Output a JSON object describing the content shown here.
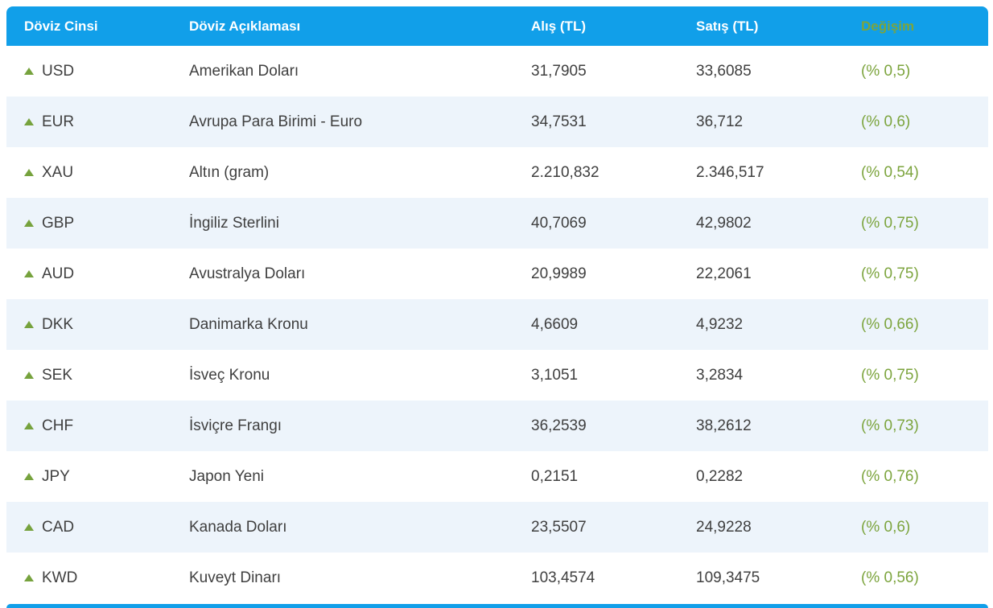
{
  "table": {
    "columns": [
      {
        "label": "Döviz Cinsi"
      },
      {
        "label": "Döviz Açıklaması"
      },
      {
        "label": "Alış (TL)"
      },
      {
        "label": "Satış (TL)"
      },
      {
        "label": "Değişim"
      }
    ],
    "rows": [
      {
        "code": "USD",
        "name": "Amerikan Doları",
        "buy": "31,7905",
        "sell": "33,6085",
        "change": "(% 0,5)",
        "direction": "up"
      },
      {
        "code": "EUR",
        "name": "Avrupa Para Birimi - Euro",
        "buy": "34,7531",
        "sell": "36,712",
        "change": "(% 0,6)",
        "direction": "up"
      },
      {
        "code": "XAU",
        "name": "Altın (gram)",
        "buy": "2.210,832",
        "sell": "2.346,517",
        "change": "(% 0,54)",
        "direction": "up"
      },
      {
        "code": "GBP",
        "name": "İngiliz Sterlini",
        "buy": "40,7069",
        "sell": "42,9802",
        "change": "(% 0,75)",
        "direction": "up"
      },
      {
        "code": "AUD",
        "name": "Avustralya Doları",
        "buy": "20,9989",
        "sell": "22,2061",
        "change": "(% 0,75)",
        "direction": "up"
      },
      {
        "code": "DKK",
        "name": "Danimarka Kronu",
        "buy": "4,6609",
        "sell": "4,9232",
        "change": "(% 0,66)",
        "direction": "up"
      },
      {
        "code": "SEK",
        "name": "İsveç Kronu",
        "buy": "3,1051",
        "sell": "3,2834",
        "change": "(% 0,75)",
        "direction": "up"
      },
      {
        "code": "CHF",
        "name": "İsviçre Frangı",
        "buy": "36,2539",
        "sell": "38,2612",
        "change": "(% 0,73)",
        "direction": "up"
      },
      {
        "code": "JPY",
        "name": "Japon Yeni",
        "buy": "0,2151",
        "sell": "0,2282",
        "change": "(% 0,76)",
        "direction": "up"
      },
      {
        "code": "CAD",
        "name": "Kanada Doları",
        "buy": "23,5507",
        "sell": "24,9228",
        "change": "(% 0,6)",
        "direction": "up"
      },
      {
        "code": "KWD",
        "name": "Kuveyt Dinarı",
        "buy": "103,4574",
        "sell": "109,3475",
        "change": "(% 0,56)",
        "direction": "up"
      }
    ]
  },
  "icons": {
    "up_triangle": "up-arrow"
  },
  "colors": {
    "header_bg": "#119fe9",
    "row_alt_bg": "#edf4fb",
    "row_bg": "#ffffff",
    "text": "#3f3f3f",
    "change_green": "#7ca43d",
    "triangle_green": "#76a23d"
  }
}
